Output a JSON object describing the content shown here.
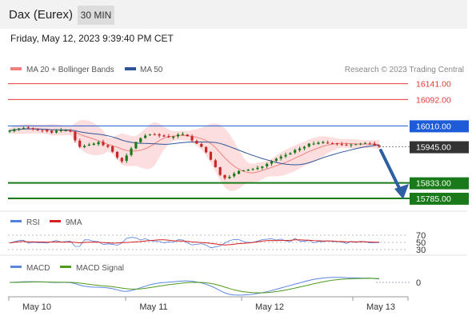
{
  "header": {
    "title": "Dax (Eurex)",
    "timeframe": "30 MIN"
  },
  "datetime": "Friday, May 12, 2023 9:39:40 PM CET",
  "legend": {
    "ma20_label": "MA 20 + Bollinger Bands",
    "ma50_label": "MA 50",
    "copyright": "Research © 2023 Trading Central",
    "rsi_label": "RSI",
    "rsi_ma_label": "9MA",
    "macd_label": "MACD",
    "macd_signal_label": "MACD Signal"
  },
  "colors": {
    "resistance": "#e53935",
    "pivot": "#1e5bd8",
    "support": "#1a7a1a",
    "price_tag": "#333333",
    "candle_up": "#1a7a1a",
    "candle_down": "#c62828",
    "ma20": "#f08080",
    "ma50": "#2e5597",
    "bollinger": "#fcdede",
    "arrow": "#2e5fa3",
    "rsi": "#4f7fe0",
    "rsi_ma": "#d61f1f",
    "macd": "#5a86e0",
    "macd_signal": "#4e9a1a"
  },
  "chart_data": {
    "type": "candlestick",
    "x_labels": [
      "May 10",
      "May 11",
      "May 12",
      "May 13"
    ],
    "price_range": [
      15760,
      16165
    ],
    "last_price": 15945.0,
    "levels": [
      {
        "label": "16141.00",
        "value": 16141.0,
        "kind": "resistance"
      },
      {
        "label": "16092.00",
        "value": 16092.0,
        "kind": "resistance"
      },
      {
        "label": "16010.00",
        "value": 16010.0,
        "kind": "pivot"
      },
      {
        "label": "15833.00",
        "value": 15833.0,
        "kind": "support"
      },
      {
        "label": "15785.00",
        "value": 15785.0,
        "kind": "support"
      }
    ],
    "close_path": [
      15995,
      16000,
      16002,
      16004,
      16003,
      16000,
      15998,
      15996,
      15993,
      15989,
      15995,
      15997,
      15996,
      15993,
      15965,
      15945,
      15948,
      15952,
      15955,
      15960,
      15950,
      15945,
      15930,
      15912,
      15900,
      15918,
      15940,
      15960,
      15972,
      15980,
      15984,
      15982,
      15980,
      15977,
      15975,
      15977,
      15983,
      15985,
      15978,
      15965,
      15955,
      15945,
      15928,
      15905,
      15882,
      15858,
      15848,
      15852,
      15862,
      15870,
      15872,
      15874,
      15876,
      15880,
      15884,
      15892,
      15900,
      15908,
      15915,
      15920,
      15925,
      15935,
      15940,
      15945,
      15955,
      15955,
      15958,
      15960,
      15958,
      15955,
      15954,
      15952,
      15950,
      15952,
      15953,
      15955,
      15957,
      15955,
      15950,
      15945
    ],
    "rsi": {
      "levels": [
        70,
        50,
        30
      ]
    },
    "macd": {
      "zero_label": "0"
    }
  }
}
